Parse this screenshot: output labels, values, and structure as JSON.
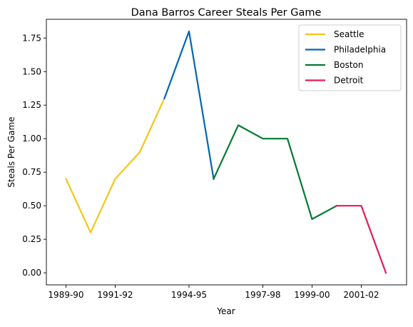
{
  "chart_data": {
    "type": "line",
    "title": "Dana Barros Career Steals Per Game",
    "xlabel": "Year",
    "ylabel": "Steals Per Game",
    "seasons": [
      "1989-90",
      "1990-91",
      "1991-92",
      "1992-93",
      "1993-94",
      "1994-95",
      "1995-96",
      "1996-97",
      "1997-98",
      "1998-99",
      "1999-00",
      "2000-01",
      "2001-02",
      "2002-03"
    ],
    "x_ticks": [
      "1989-90",
      "1991-92",
      "1994-95",
      "1997-98",
      "1999-00",
      "2001-02"
    ],
    "y_ticks": [
      "0.00",
      "0.25",
      "0.50",
      "0.75",
      "1.00",
      "1.25",
      "1.50",
      "1.75"
    ],
    "ylim": [
      -0.09,
      1.89
    ],
    "grid": false,
    "legend_position": "top-right",
    "series": [
      {
        "name": "Seattle",
        "color": "#F5C518",
        "points": [
          [
            "1989-90",
            0.7
          ],
          [
            "1990-91",
            0.3
          ],
          [
            "1991-92",
            0.7
          ],
          [
            "1992-93",
            0.9
          ],
          [
            "1993-94",
            1.3
          ]
        ]
      },
      {
        "name": "Philadelphia",
        "color": "#0066B2",
        "points": [
          [
            "1993-94",
            1.3
          ],
          [
            "1994-95",
            1.8
          ],
          [
            "1995-96",
            0.7
          ]
        ]
      },
      {
        "name": "Boston",
        "color": "#007A33",
        "points": [
          [
            "1995-96",
            0.7
          ],
          [
            "1996-97",
            1.1
          ],
          [
            "1997-98",
            1.0
          ],
          [
            "1998-99",
            1.0
          ],
          [
            "1999-00",
            0.4
          ],
          [
            "2000-01",
            0.5
          ]
        ]
      },
      {
        "name": "Detroit",
        "color": "#E31B54",
        "points": [
          [
            "2000-01",
            0.5
          ],
          [
            "2001-02",
            0.5
          ],
          [
            "2002-03",
            0.0
          ]
        ]
      }
    ]
  }
}
